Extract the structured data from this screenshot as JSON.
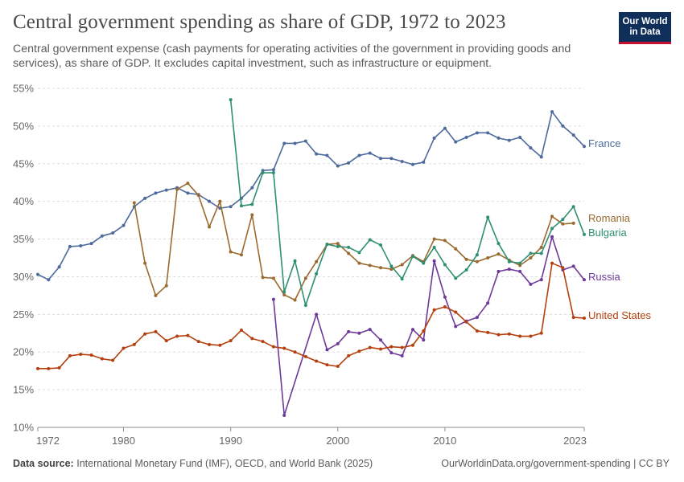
{
  "header": {
    "title": "Central government spending as share of GDP, 1972 to 2023",
    "subtitle": "Central government expense (cash payments for operating activities of the government in providing goods and services), as share of GDP. It excludes capital investment, such as infrastructure or equipment.",
    "logo_line1": "Our World",
    "logo_line2": "in Data"
  },
  "footer": {
    "source_label": "Data source:",
    "source_text": "International Monetary Fund (IMF), OECD, and World Bank (2025)",
    "url": "OurWorldinData.org/government-spending | CC BY"
  },
  "chart_data": {
    "type": "line",
    "xlim": [
      1972,
      2023
    ],
    "ylim": [
      10,
      55
    ],
    "x_ticks": [
      1972,
      1980,
      1990,
      2000,
      2010,
      2023
    ],
    "y_ticks": [
      10,
      15,
      20,
      25,
      30,
      35,
      40,
      45,
      50,
      55
    ],
    "y_tick_suffix": "%",
    "grid": "horizontal dashed",
    "legend": "line-end labels",
    "series": [
      {
        "name": "France",
        "color": "#4c6a9c",
        "points": [
          [
            1972,
            30.3
          ],
          [
            1973,
            29.6
          ],
          [
            1974,
            31.3
          ],
          [
            1975,
            34.0
          ],
          [
            1976,
            34.1
          ],
          [
            1977,
            34.4
          ],
          [
            1978,
            35.4
          ],
          [
            1979,
            35.8
          ],
          [
            1980,
            36.8
          ],
          [
            1981,
            39.3
          ],
          [
            1982,
            40.4
          ],
          [
            1983,
            41.1
          ],
          [
            1984,
            41.5
          ],
          [
            1985,
            41.8
          ],
          [
            1986,
            41.1
          ],
          [
            1987,
            40.9
          ],
          [
            1988,
            40.0
          ],
          [
            1989,
            39.1
          ],
          [
            1990,
            39.3
          ],
          [
            1991,
            40.4
          ],
          [
            1992,
            41.8
          ],
          [
            1993,
            44.1
          ],
          [
            1994,
            44.2
          ],
          [
            1995,
            47.7
          ],
          [
            1996,
            47.7
          ],
          [
            1997,
            48.0
          ],
          [
            1998,
            46.3
          ],
          [
            1999,
            46.1
          ],
          [
            2000,
            44.7
          ],
          [
            2001,
            45.1
          ],
          [
            2002,
            46.1
          ],
          [
            2003,
            46.4
          ],
          [
            2004,
            45.7
          ],
          [
            2005,
            45.7
          ],
          [
            2006,
            45.3
          ],
          [
            2007,
            44.9
          ],
          [
            2008,
            45.2
          ],
          [
            2009,
            48.4
          ],
          [
            2010,
            49.7
          ],
          [
            2011,
            47.9
          ],
          [
            2012,
            48.5
          ],
          [
            2013,
            49.1
          ],
          [
            2014,
            49.1
          ],
          [
            2015,
            48.4
          ],
          [
            2016,
            48.1
          ],
          [
            2017,
            48.5
          ],
          [
            2018,
            47.1
          ],
          [
            2019,
            45.9
          ],
          [
            2020,
            51.9
          ],
          [
            2021,
            50.0
          ],
          [
            2022,
            48.8
          ],
          [
            2023,
            47.3
          ]
        ]
      },
      {
        "name": "Romania",
        "color": "#9a6a2f",
        "points": [
          [
            1981,
            39.8
          ],
          [
            1982,
            31.8
          ],
          [
            1983,
            27.5
          ],
          [
            1984,
            28.8
          ],
          [
            1985,
            41.6
          ],
          [
            1986,
            42.4
          ],
          [
            1987,
            40.8
          ],
          [
            1988,
            36.6
          ],
          [
            1989,
            40.0
          ],
          [
            1990,
            33.3
          ],
          [
            1991,
            32.9
          ],
          [
            1992,
            38.2
          ],
          [
            1993,
            29.9
          ],
          [
            1994,
            29.8
          ],
          [
            1995,
            27.6
          ],
          [
            1996,
            26.9
          ],
          [
            1997,
            29.8
          ],
          [
            1998,
            32.0
          ],
          [
            1999,
            34.3
          ],
          [
            2000,
            34.4
          ],
          [
            2001,
            33.1
          ],
          [
            2002,
            31.8
          ],
          [
            2003,
            31.5
          ],
          [
            2004,
            31.2
          ],
          [
            2005,
            31.0
          ],
          [
            2006,
            31.6
          ],
          [
            2007,
            32.8
          ],
          [
            2008,
            32.0
          ],
          [
            2009,
            35.0
          ],
          [
            2010,
            34.8
          ],
          [
            2011,
            33.7
          ],
          [
            2012,
            32.3
          ],
          [
            2013,
            32.0
          ],
          [
            2014,
            32.5
          ],
          [
            2015,
            33.0
          ],
          [
            2016,
            32.2
          ],
          [
            2017,
            31.5
          ],
          [
            2018,
            32.5
          ],
          [
            2019,
            33.9
          ],
          [
            2020,
            38.0
          ],
          [
            2021,
            37.0
          ],
          [
            2022,
            37.1
          ]
        ]
      },
      {
        "name": "Bulgaria",
        "color": "#2e8f72",
        "points": [
          [
            1990,
            53.5
          ],
          [
            1991,
            39.4
          ],
          [
            1992,
            39.6
          ],
          [
            1993,
            43.8
          ],
          [
            1994,
            43.8
          ],
          [
            1995,
            28.0
          ],
          [
            1996,
            32.1
          ],
          [
            1997,
            26.2
          ],
          [
            1998,
            30.4
          ],
          [
            1999,
            34.3
          ],
          [
            2000,
            34.0
          ],
          [
            2001,
            33.9
          ],
          [
            2002,
            33.2
          ],
          [
            2003,
            34.9
          ],
          [
            2004,
            34.2
          ],
          [
            2005,
            31.4
          ],
          [
            2006,
            29.7
          ],
          [
            2007,
            32.7
          ],
          [
            2008,
            31.8
          ],
          [
            2009,
            33.9
          ],
          [
            2010,
            31.6
          ],
          [
            2011,
            29.8
          ],
          [
            2012,
            30.9
          ],
          [
            2013,
            32.9
          ],
          [
            2014,
            37.9
          ],
          [
            2015,
            34.4
          ],
          [
            2016,
            32.0
          ],
          [
            2017,
            31.8
          ],
          [
            2018,
            33.1
          ],
          [
            2019,
            33.1
          ],
          [
            2020,
            36.4
          ],
          [
            2021,
            37.6
          ],
          [
            2022,
            39.3
          ],
          [
            2023,
            35.6
          ]
        ]
      },
      {
        "name": "Russia",
        "color": "#6e3a99",
        "points": [
          [
            1994,
            27.0
          ],
          [
            1995,
            11.6
          ],
          [
            1998,
            25.0
          ],
          [
            1999,
            20.3
          ],
          [
            2000,
            21.1
          ],
          [
            2001,
            22.7
          ],
          [
            2002,
            22.5
          ],
          [
            2003,
            23.0
          ],
          [
            2004,
            21.6
          ],
          [
            2005,
            19.9
          ],
          [
            2006,
            19.5
          ],
          [
            2007,
            23.0
          ],
          [
            2008,
            21.6
          ],
          [
            2009,
            32.1
          ],
          [
            2010,
            27.3
          ],
          [
            2011,
            23.4
          ],
          [
            2012,
            24.1
          ],
          [
            2013,
            24.6
          ],
          [
            2014,
            26.5
          ],
          [
            2015,
            30.7
          ],
          [
            2016,
            31.0
          ],
          [
            2017,
            30.7
          ],
          [
            2018,
            29.0
          ],
          [
            2019,
            29.6
          ],
          [
            2020,
            35.3
          ],
          [
            2021,
            30.9
          ],
          [
            2022,
            31.4
          ],
          [
            2023,
            29.6
          ]
        ]
      },
      {
        "name": "United States",
        "color": "#b5400f",
        "points": [
          [
            1972,
            17.8
          ],
          [
            1973,
            17.8
          ],
          [
            1974,
            17.9
          ],
          [
            1975,
            19.5
          ],
          [
            1976,
            19.7
          ],
          [
            1977,
            19.6
          ],
          [
            1978,
            19.1
          ],
          [
            1979,
            18.9
          ],
          [
            1980,
            20.5
          ],
          [
            1981,
            21.0
          ],
          [
            1982,
            22.4
          ],
          [
            1983,
            22.7
          ],
          [
            1984,
            21.5
          ],
          [
            1985,
            22.1
          ],
          [
            1986,
            22.2
          ],
          [
            1987,
            21.4
          ],
          [
            1988,
            21.0
          ],
          [
            1989,
            20.9
          ],
          [
            1990,
            21.5
          ],
          [
            1991,
            22.9
          ],
          [
            1992,
            21.8
          ],
          [
            1993,
            21.4
          ],
          [
            1994,
            20.7
          ],
          [
            1995,
            20.5
          ],
          [
            1996,
            20.0
          ],
          [
            1997,
            19.4
          ],
          [
            1998,
            18.8
          ],
          [
            1999,
            18.3
          ],
          [
            2000,
            18.1
          ],
          [
            2001,
            19.5
          ],
          [
            2002,
            20.1
          ],
          [
            2003,
            20.6
          ],
          [
            2004,
            20.4
          ],
          [
            2005,
            20.7
          ],
          [
            2006,
            20.6
          ],
          [
            2007,
            20.9
          ],
          [
            2008,
            22.8
          ],
          [
            2009,
            25.6
          ],
          [
            2010,
            26.0
          ],
          [
            2011,
            25.3
          ],
          [
            2012,
            24.0
          ],
          [
            2013,
            22.8
          ],
          [
            2014,
            22.6
          ],
          [
            2015,
            22.3
          ],
          [
            2016,
            22.4
          ],
          [
            2017,
            22.1
          ],
          [
            2018,
            22.1
          ],
          [
            2019,
            22.5
          ],
          [
            2020,
            31.8
          ],
          [
            2021,
            31.2
          ],
          [
            2022,
            24.6
          ],
          [
            2023,
            24.5
          ]
        ]
      }
    ]
  }
}
